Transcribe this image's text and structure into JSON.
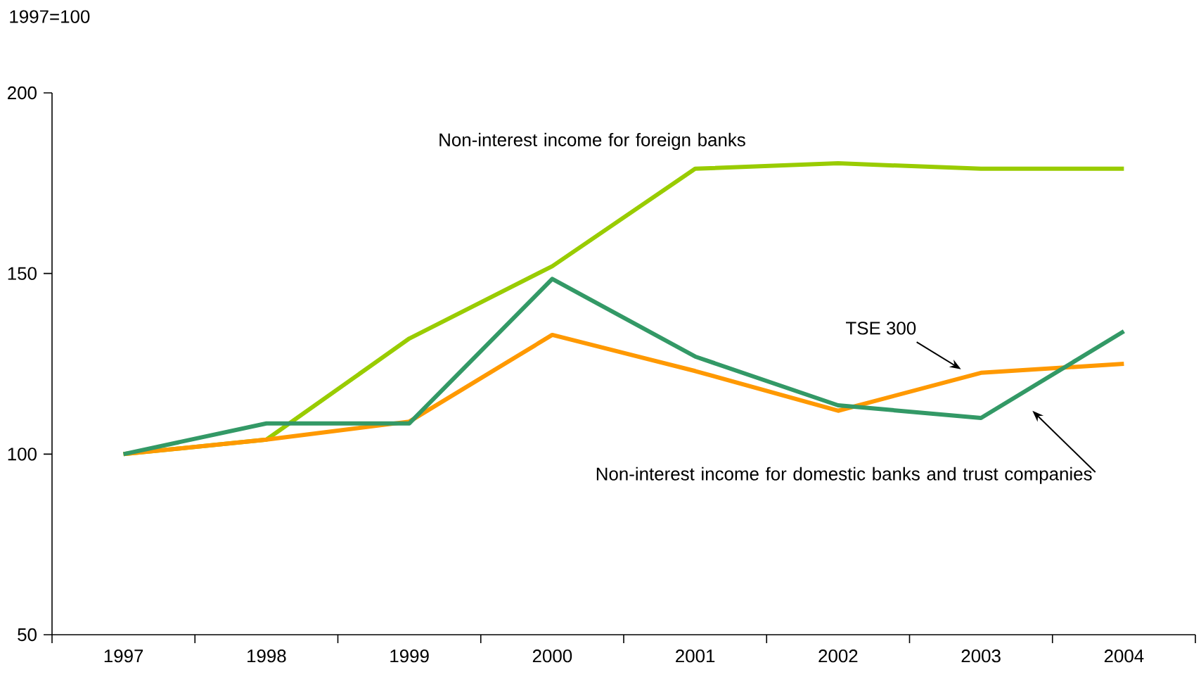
{
  "chart_data": {
    "type": "line",
    "ylabel": "1997=100",
    "categories": [
      "1997",
      "1998",
      "1999",
      "2000",
      "2001",
      "2002",
      "2003",
      "2004"
    ],
    "series": [
      {
        "name": "Non-interest income for foreign banks",
        "color": "#99cc00",
        "values": [
          100,
          104,
          132,
          152,
          179,
          180.5,
          179,
          179
        ]
      },
      {
        "name": "TSE 300",
        "color": "#ff9900",
        "values": [
          100,
          104,
          109,
          133,
          123,
          112,
          122.5,
          125
        ]
      },
      {
        "name": "Non-interest income for domestic banks and trust companies",
        "color": "#339966",
        "values": [
          100,
          108.5,
          108.5,
          148.5,
          127,
          113.5,
          110,
          134
        ]
      }
    ],
    "ylim": [
      50,
      200
    ],
    "yticks": [
      50,
      100,
      150,
      200
    ],
    "grid": false,
    "legend": false,
    "marker": "none",
    "line_style": "solid"
  }
}
